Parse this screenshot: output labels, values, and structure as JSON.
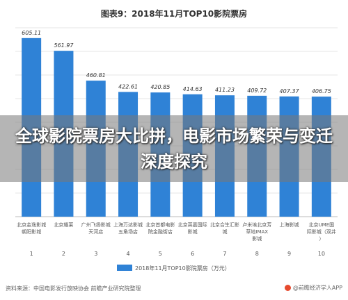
{
  "chart_data": {
    "type": "bar",
    "title": "图表9：2018年11月TOP10影院票房",
    "legend": "2018年11月TOP10影院票房（万元）",
    "legend_position": "bottom",
    "grid": true,
    "ylim": [
      0,
      640
    ],
    "bar_color": "#2f82d6",
    "x": [
      "1",
      "2",
      "3",
      "4",
      "5",
      "6",
      "7",
      "8",
      "9",
      "10"
    ],
    "categories": [
      "北京金逸影城朝阳影城",
      "北京耀莱",
      "广州飞扬影城天河店",
      "上海万达影城五角场店",
      "北京首都电影院金融街店",
      "北京英嘉国际影城",
      "北京合生汇影城",
      "卢米埃北京芳草地IMAX影城",
      "上海影城",
      "北京UME国际影城（双井）"
    ],
    "values": [
      605.11,
      561.97,
      460.81,
      422.61,
      420.85,
      414.63,
      411.23,
      409.72,
      407.37,
      406.75
    ],
    "value_labels": [
      "605.11",
      "561.97",
      "460.81",
      "422.61",
      "420.85",
      "414.63",
      "411.23",
      "409.72",
      "407.37",
      "406.75"
    ]
  },
  "overlay": {
    "title": "全球影院票房大比拼，电影市场繁荣与变迁深度探究"
  },
  "footer": {
    "source": "资料来源：中国电影发行放映协会 前瞻产业研究院整理",
    "brand": "@前瞻经济学人APP"
  }
}
